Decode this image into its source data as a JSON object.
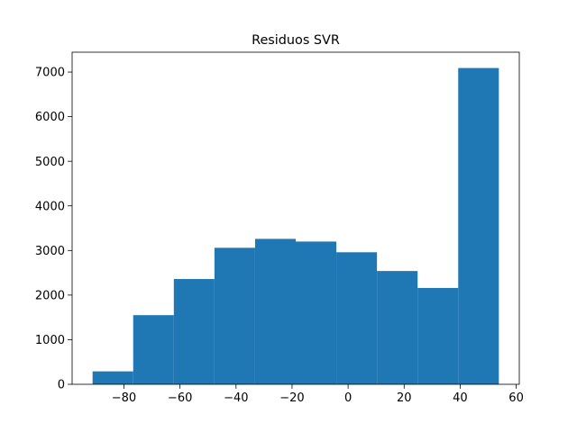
{
  "chart_data": {
    "type": "bar",
    "title": "Residuos SVR",
    "xlabel": "",
    "ylabel": "",
    "bin_edges": [
      -91.2,
      -76.7,
      -62.2,
      -47.7,
      -33.2,
      -18.7,
      -4.2,
      10.3,
      24.8,
      39.3,
      53.8
    ],
    "values": [
      290,
      1550,
      2360,
      3060,
      3260,
      3200,
      2960,
      2540,
      2160,
      7090
    ],
    "xlim": [
      -98.5,
      61.1
    ],
    "ylim": [
      0,
      7445
    ],
    "xticks": [
      -80,
      -60,
      -40,
      -20,
      0,
      20,
      40,
      60
    ],
    "xtick_labels": [
      "−80",
      "−60",
      "−40",
      "−20",
      "0",
      "20",
      "40",
      "60"
    ],
    "yticks": [
      0,
      1000,
      2000,
      3000,
      4000,
      5000,
      6000,
      7000
    ],
    "ytick_labels": [
      "0",
      "1000",
      "2000",
      "3000",
      "4000",
      "5000",
      "6000",
      "7000"
    ],
    "grid": false,
    "bar_color": "#1f77b4"
  }
}
